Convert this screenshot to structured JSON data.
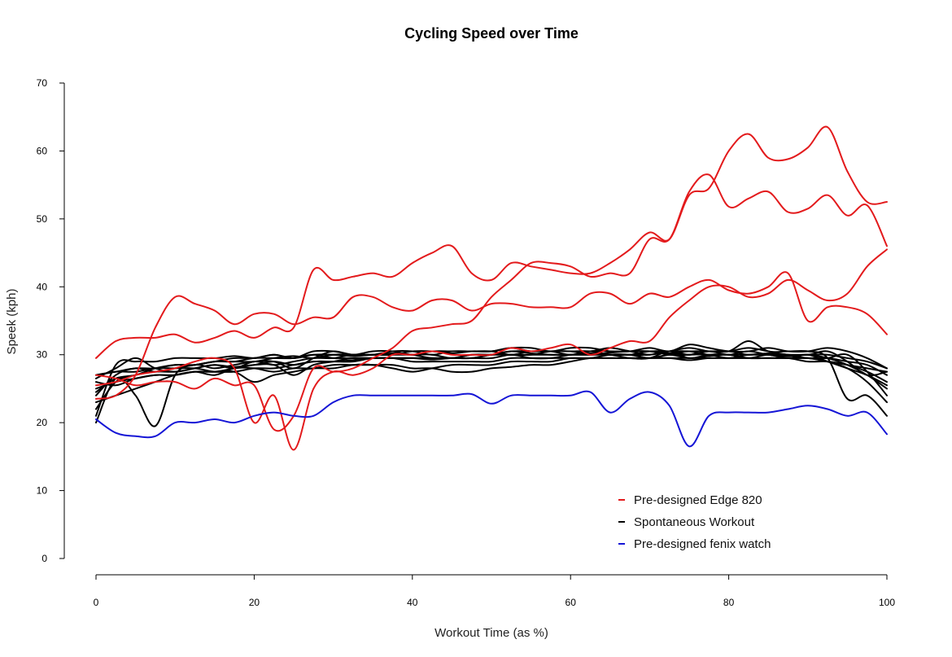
{
  "chart_data": {
    "type": "line",
    "title": "Cycling Speed over Time",
    "xlabel": "Workout Time (as %)",
    "ylabel": "Speek (kph)",
    "xlim": [
      0,
      100
    ],
    "ylim": [
      0,
      70
    ],
    "x_ticks": [
      "0",
      "20",
      "40",
      "60",
      "80",
      "100"
    ],
    "y_ticks": [
      "0",
      "10",
      "20",
      "30",
      "40",
      "50",
      "60",
      "70"
    ],
    "grid": false,
    "legend_position": "bottom-right",
    "legend": [
      {
        "label": "Pre-designed Edge 820",
        "color": "#e31a1c"
      },
      {
        "label": "Spontaneous Workout",
        "color": "#000000"
      },
      {
        "label": "Pre-designed fenix watch",
        "color": "#1515d6"
      }
    ],
    "x": [
      0,
      2.5,
      5,
      7.5,
      10,
      12.5,
      15,
      17.5,
      20,
      22.5,
      25,
      27.5,
      30,
      32.5,
      35,
      37.5,
      40,
      42.5,
      45,
      47.5,
      50,
      52.5,
      55,
      57.5,
      60,
      62.5,
      65,
      67.5,
      70,
      72.5,
      75,
      77.5,
      80,
      82.5,
      85,
      87.5,
      90,
      92.5,
      95,
      97.5,
      100
    ],
    "series": [
      {
        "group": "Pre-designed Edge 820",
        "color": "#e31a1c",
        "values": [
          23.5,
          24,
          27,
          34,
          38.5,
          37.5,
          36.5,
          34.5,
          36,
          36,
          34.5,
          35.5,
          35.5,
          38.5,
          38.5,
          37,
          36.5,
          38,
          38,
          36.5,
          37.5,
          37.5,
          37,
          37,
          37,
          39,
          39,
          37.5,
          39,
          38.5,
          40,
          41,
          39.5,
          39,
          40,
          42,
          35,
          37,
          37,
          36,
          33
        ]
      },
      {
        "group": "Pre-designed Edge 820",
        "color": "#e31a1c",
        "values": [
          29.5,
          32,
          32.5,
          32.5,
          33,
          31.8,
          32.5,
          33.5,
          32.5,
          34,
          34,
          42.5,
          41,
          41.5,
          42,
          41.5,
          43.5,
          45,
          46,
          42,
          41,
          43.5,
          43,
          42.5,
          42,
          42,
          43.5,
          45.5,
          48,
          47,
          53.5,
          54.5,
          60,
          62.5,
          59,
          58.8,
          60.5,
          63.5,
          57,
          52.5,
          52.5
        ]
      },
      {
        "group": "Pre-designed Edge 820",
        "color": "#e31a1c",
        "values": [
          27,
          26.5,
          25.5,
          26,
          26,
          25,
          26.5,
          25.5,
          25.5,
          19,
          21,
          28,
          27.5,
          28,
          29.5,
          31,
          33.5,
          34,
          34.5,
          35,
          38.5,
          41,
          43.5,
          43.5,
          43,
          41.5,
          42,
          42,
          47,
          47,
          54,
          56.5,
          51.8,
          53,
          54,
          51,
          51.5,
          53.5,
          50.5,
          52,
          46
        ]
      },
      {
        "group": "Pre-designed Edge 820",
        "color": "#e31a1c",
        "values": [
          25.5,
          26,
          27,
          27.5,
          28,
          29,
          29.5,
          28,
          20,
          24,
          16,
          25,
          27.5,
          27,
          28,
          30,
          30,
          30.5,
          30,
          30,
          30,
          31,
          30.5,
          31,
          31.5,
          30,
          31,
          32,
          32,
          35.5,
          38,
          40,
          40,
          38.5,
          39,
          41,
          39.5,
          38,
          39,
          43,
          45.5
        ]
      },
      {
        "group": "Spontaneous Workout",
        "color": "#000000",
        "values": [
          24,
          27,
          28,
          27.5,
          28,
          28.5,
          29,
          29.5,
          29.5,
          30,
          29.5,
          30,
          30,
          29.8,
          30,
          30,
          30,
          30,
          29.5,
          30,
          30,
          30,
          30,
          30.5,
          30.5,
          30.5,
          30,
          30,
          30,
          30.5,
          30,
          30.5,
          30,
          30.5,
          30,
          29.8,
          30,
          29.5,
          28.5,
          27,
          25
        ]
      },
      {
        "group": "Spontaneous Workout",
        "color": "#000000",
        "values": [
          26.5,
          28,
          29.5,
          28,
          27.5,
          28,
          28.5,
          28,
          29,
          28.5,
          29,
          29.5,
          29.5,
          30,
          30,
          30.2,
          30,
          29.5,
          29.5,
          30,
          30,
          30.5,
          30.5,
          30.5,
          30.5,
          30,
          30.3,
          30.5,
          30.5,
          30.2,
          30.5,
          30.5,
          30.5,
          30,
          30.2,
          30,
          29.5,
          29.5,
          30,
          27.5,
          24
        ]
      },
      {
        "group": "Spontaneous Workout",
        "color": "#000000",
        "values": [
          20,
          26.5,
          24,
          19.5,
          27,
          28.5,
          28,
          28.5,
          29,
          29,
          28,
          29.5,
          30.5,
          30,
          30.5,
          30.5,
          30,
          30.5,
          30.5,
          30.5,
          30.5,
          30,
          30.5,
          30.5,
          30.5,
          30.5,
          31,
          30.5,
          30,
          30.5,
          31,
          30.5,
          30.5,
          31,
          30.5,
          30,
          30,
          30.5,
          29,
          27,
          27.5
        ]
      },
      {
        "group": "Spontaneous Workout",
        "color": "#000000",
        "values": [
          22,
          26,
          27,
          27.5,
          27.5,
          28,
          28.5,
          28.2,
          28.5,
          28.5,
          27,
          28.5,
          29,
          29.5,
          29.5,
          29.5,
          29.5,
          29.3,
          29.5,
          29.5,
          30,
          30.5,
          30.2,
          30,
          30,
          30,
          30,
          29.5,
          29.5,
          30.5,
          29.5,
          30,
          30,
          29.5,
          30,
          29.5,
          30,
          29,
          28,
          27,
          25.5
        ]
      },
      {
        "group": "Spontaneous Workout",
        "color": "#000000",
        "values": [
          26,
          25.5,
          26.5,
          27,
          27,
          27.5,
          27,
          28,
          28,
          27.5,
          28,
          28,
          28.5,
          28.5,
          28.5,
          28.5,
          28,
          28,
          27.5,
          27.5,
          28,
          28.2,
          28.5,
          28.5,
          29,
          29.5,
          29.5,
          29.5,
          29.5,
          29.5,
          29.2,
          29.5,
          29.5,
          29.5,
          29.5,
          29.5,
          29,
          29,
          28.5,
          27.5,
          26
        ]
      },
      {
        "group": "Spontaneous Workout",
        "color": "#000000",
        "values": [
          21,
          28.5,
          29,
          29,
          29.5,
          29.5,
          29.5,
          29.8,
          29.5,
          30,
          29.5,
          30.5,
          30.5,
          30,
          30,
          30.5,
          30.5,
          30,
          30.5,
          30.5,
          30.5,
          31,
          31,
          30.5,
          31,
          31,
          30.5,
          30.5,
          30.5,
          30,
          30,
          30.5,
          30.5,
          32,
          30.5,
          30.5,
          30.5,
          29.5,
          23.5,
          24,
          21
        ]
      },
      {
        "group": "Spontaneous Workout",
        "color": "#000000",
        "values": [
          27,
          27.5,
          28,
          28,
          28.5,
          28.5,
          29,
          29,
          29.5,
          29.5,
          29.5,
          30,
          29.5,
          29.5,
          29.5,
          29.5,
          29.5,
          29.5,
          29.5,
          29.5,
          29.5,
          30,
          29.5,
          29.5,
          30,
          30.2,
          30,
          30,
          29.5,
          30,
          29.5,
          29.8,
          30,
          29.5,
          29.5,
          29.5,
          29.5,
          29,
          28.5,
          28,
          27.5
        ]
      },
      {
        "group": "Spontaneous Workout",
        "color": "#000000",
        "values": [
          25,
          26,
          26.5,
          27,
          27,
          27.5,
          27.5,
          27.5,
          28,
          28,
          28.5,
          29,
          29,
          29,
          29.5,
          29.5,
          29.5,
          29.5,
          29.5,
          29.5,
          30,
          30,
          30,
          30,
          30,
          30,
          30,
          30,
          30.5,
          30.5,
          30.5,
          30,
          30,
          30,
          30,
          30,
          30,
          30,
          29.5,
          29,
          28
        ]
      },
      {
        "group": "Spontaneous Workout",
        "color": "#000000",
        "values": [
          23,
          24,
          25,
          26,
          27,
          27.5,
          27.5,
          28,
          28.5,
          29,
          28.5,
          29,
          29,
          29.2,
          29.5,
          29.5,
          29,
          29,
          29,
          29,
          29,
          29.5,
          29.5,
          29.5,
          29.5,
          29.5,
          29.5,
          29.5,
          29.5,
          29.5,
          29.5,
          29.5,
          29.5,
          29.5,
          29.5,
          29.5,
          29.5,
          29.5,
          29,
          28.5,
          27
        ]
      },
      {
        "group": "Spontaneous Workout",
        "color": "#000000",
        "values": [
          24.5,
          26.5,
          27,
          28,
          28.5,
          28.5,
          29,
          29,
          29,
          29.5,
          29.8,
          29.5,
          30,
          30,
          30,
          30,
          30.5,
          30.5,
          30.2,
          30.5,
          30.5,
          31,
          30.5,
          30.5,
          30,
          30.5,
          30.5,
          30.5,
          31,
          30.5,
          31.5,
          31,
          30.5,
          30.5,
          31,
          30.5,
          30.5,
          31,
          30.5,
          29.5,
          28
        ]
      },
      {
        "group": "Spontaneous Workout",
        "color": "#000000",
        "values": [
          27,
          27.5,
          27.5,
          28,
          28,
          28,
          27.5,
          27.5,
          26,
          27,
          27.5,
          28,
          28,
          28.5,
          28.5,
          28,
          27.5,
          28,
          28.5,
          28.5,
          28.5,
          29,
          29,
          29,
          29.5,
          29.5,
          30,
          30,
          29.5,
          30,
          30,
          30,
          29.5,
          30,
          30,
          29.5,
          29.5,
          29,
          28,
          26,
          23
        ]
      },
      {
        "group": "Pre-designed fenix watch",
        "color": "#1515d6",
        "values": [
          20.5,
          18.5,
          18,
          18,
          20,
          20,
          20.5,
          20,
          21,
          21.5,
          21,
          21,
          23,
          24,
          24,
          24,
          24,
          24,
          24,
          24.2,
          22.8,
          24,
          24,
          24,
          24,
          24.5,
          21.5,
          23.5,
          24.5,
          22.5,
          16.5,
          21,
          21.5,
          21.5,
          21.5,
          22,
          22.5,
          22,
          21,
          21.5,
          18.3
        ]
      }
    ]
  }
}
